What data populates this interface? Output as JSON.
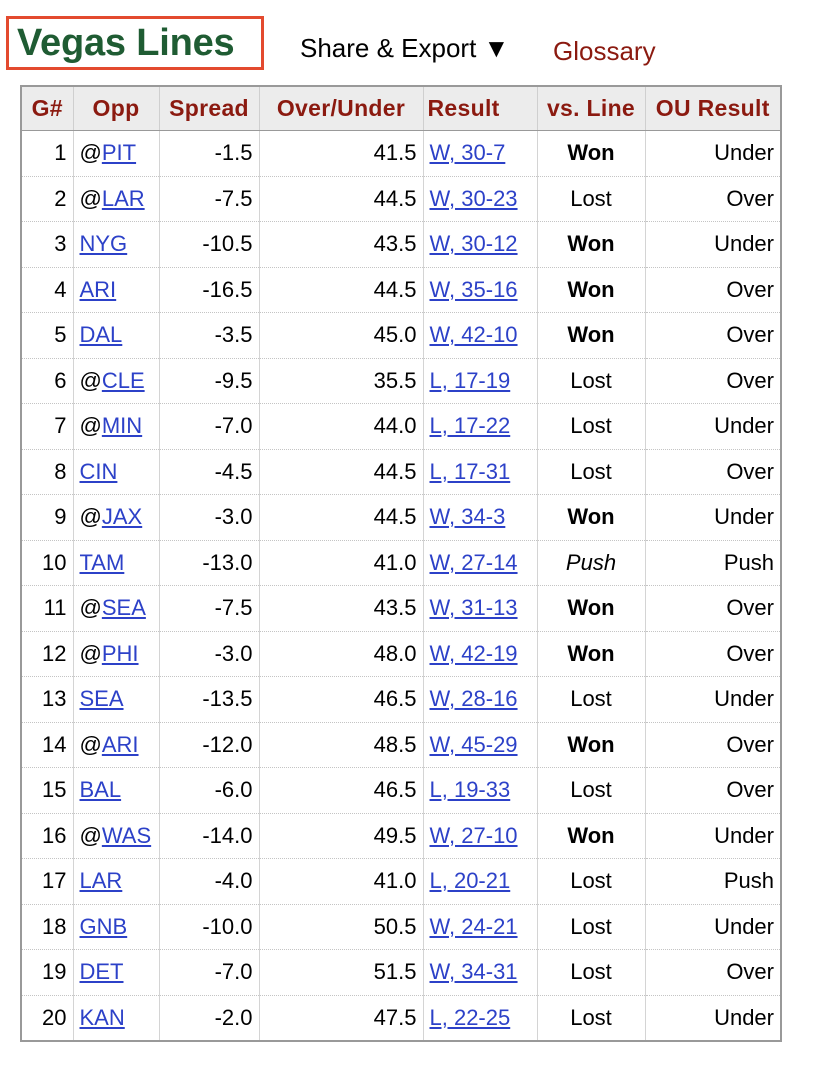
{
  "header": {
    "title": "Vegas Lines",
    "share_label": "Share & Export ▼",
    "glossary_label": "Glossary"
  },
  "colors": {
    "title": "#1f5c33",
    "title_border": "#e34a2f",
    "column_header": "#8b1a10",
    "link": "#2c41c8"
  },
  "table": {
    "columns": [
      "G#",
      "Opp",
      "Spread",
      "Over/Under",
      "Result",
      "vs. Line",
      "OU Result"
    ],
    "rows": [
      {
        "g": "1",
        "prefix": "@",
        "opp": "PIT",
        "spread": "-1.5",
        "ou": "41.5",
        "result": "W, 30-7",
        "vs_line": "Won",
        "ou_result": "Under"
      },
      {
        "g": "2",
        "prefix": "@",
        "opp": "LAR",
        "spread": "-7.5",
        "ou": "44.5",
        "result": "W, 30-23",
        "vs_line": "Lost",
        "ou_result": "Over"
      },
      {
        "g": "3",
        "prefix": "",
        "opp": "NYG",
        "spread": "-10.5",
        "ou": "43.5",
        "result": "W, 30-12",
        "vs_line": "Won",
        "ou_result": "Under"
      },
      {
        "g": "4",
        "prefix": "",
        "opp": "ARI",
        "spread": "-16.5",
        "ou": "44.5",
        "result": "W, 35-16",
        "vs_line": "Won",
        "ou_result": "Over"
      },
      {
        "g": "5",
        "prefix": "",
        "opp": "DAL",
        "spread": "-3.5",
        "ou": "45.0",
        "result": "W, 42-10",
        "vs_line": "Won",
        "ou_result": "Over"
      },
      {
        "g": "6",
        "prefix": "@",
        "opp": "CLE",
        "spread": "-9.5",
        "ou": "35.5",
        "result": "L, 17-19",
        "vs_line": "Lost",
        "ou_result": "Over"
      },
      {
        "g": "7",
        "prefix": "@",
        "opp": "MIN",
        "spread": "-7.0",
        "ou": "44.0",
        "result": "L, 17-22",
        "vs_line": "Lost",
        "ou_result": "Under"
      },
      {
        "g": "8",
        "prefix": "",
        "opp": "CIN",
        "spread": "-4.5",
        "ou": "44.5",
        "result": "L, 17-31",
        "vs_line": "Lost",
        "ou_result": "Over"
      },
      {
        "g": "9",
        "prefix": "@",
        "opp": "JAX",
        "spread": "-3.0",
        "ou": "44.5",
        "result": "W, 34-3",
        "vs_line": "Won",
        "ou_result": "Under"
      },
      {
        "g": "10",
        "prefix": "",
        "opp": "TAM",
        "spread": "-13.0",
        "ou": "41.0",
        "result": "W, 27-14",
        "vs_line": "Push",
        "ou_result": "Push"
      },
      {
        "g": "11",
        "prefix": "@",
        "opp": "SEA",
        "spread": "-7.5",
        "ou": "43.5",
        "result": "W, 31-13",
        "vs_line": "Won",
        "ou_result": "Over"
      },
      {
        "g": "12",
        "prefix": "@",
        "opp": "PHI",
        "spread": "-3.0",
        "ou": "48.0",
        "result": "W, 42-19",
        "vs_line": "Won",
        "ou_result": "Over"
      },
      {
        "g": "13",
        "prefix": "",
        "opp": "SEA",
        "spread": "-13.5",
        "ou": "46.5",
        "result": "W, 28-16",
        "vs_line": "Lost",
        "ou_result": "Under"
      },
      {
        "g": "14",
        "prefix": "@",
        "opp": "ARI",
        "spread": "-12.0",
        "ou": "48.5",
        "result": "W, 45-29",
        "vs_line": "Won",
        "ou_result": "Over"
      },
      {
        "g": "15",
        "prefix": "",
        "opp": "BAL",
        "spread": "-6.0",
        "ou": "46.5",
        "result": "L, 19-33",
        "vs_line": "Lost",
        "ou_result": "Over"
      },
      {
        "g": "16",
        "prefix": "@",
        "opp": "WAS",
        "spread": "-14.0",
        "ou": "49.5",
        "result": "W, 27-10",
        "vs_line": "Won",
        "ou_result": "Under"
      },
      {
        "g": "17",
        "prefix": "",
        "opp": "LAR",
        "spread": "-4.0",
        "ou": "41.0",
        "result": "L, 20-21",
        "vs_line": "Lost",
        "ou_result": "Push"
      },
      {
        "g": "18",
        "prefix": "",
        "opp": "GNB",
        "spread": "-10.0",
        "ou": "50.5",
        "result": "W, 24-21",
        "vs_line": "Lost",
        "ou_result": "Under"
      },
      {
        "g": "19",
        "prefix": "",
        "opp": "DET",
        "spread": "-7.0",
        "ou": "51.5",
        "result": "W, 34-31",
        "vs_line": "Lost",
        "ou_result": "Over"
      },
      {
        "g": "20",
        "prefix": "",
        "opp": "KAN",
        "spread": "-2.0",
        "ou": "47.5",
        "result": "L, 22-25",
        "vs_line": "Lost",
        "ou_result": "Under"
      }
    ]
  }
}
